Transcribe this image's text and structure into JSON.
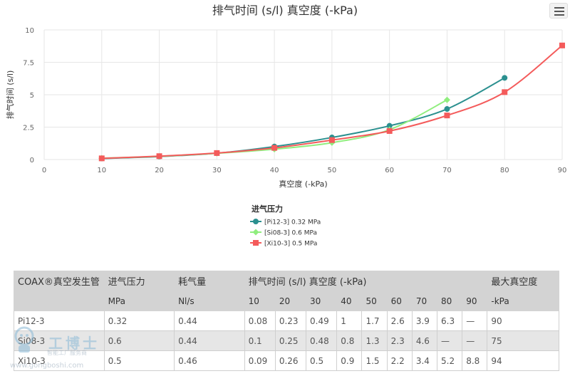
{
  "chart_data": {
    "type": "line",
    "title": "排气时间 (s/l) 真空度 (-kPa)",
    "xlabel": "真空度 (-kPa)",
    "ylabel": "排气时间 (s/l)",
    "xlim": [
      0,
      90
    ],
    "ylim": [
      0,
      10
    ],
    "xticks": [
      0,
      10,
      20,
      30,
      40,
      50,
      60,
      70,
      80,
      90
    ],
    "yticks": [
      0,
      2.5,
      5,
      7.5,
      10
    ],
    "ytick_labels": [
      "0",
      "2.5",
      "5",
      "7.5",
      "10"
    ],
    "grid": true,
    "legend_title": "进气压力",
    "legend_position": "bottom",
    "series": [
      {
        "name": "[Pi12-3] 0.32 MPa",
        "color": "#2b908f",
        "marker": "circle",
        "x": [
          10,
          20,
          30,
          40,
          50,
          60,
          70,
          80
        ],
        "y": [
          0.08,
          0.23,
          0.49,
          1,
          1.7,
          2.6,
          3.9,
          6.3
        ]
      },
      {
        "name": "[Si08-3] 0.6 MPa",
        "color": "#90ee7e",
        "marker": "diamond",
        "x": [
          10,
          20,
          30,
          40,
          50,
          60,
          70
        ],
        "y": [
          0.1,
          0.25,
          0.48,
          0.8,
          1.3,
          2.3,
          4.6
        ]
      },
      {
        "name": "[Xi10-3] 0.5 MPa",
        "color": "#f45b5b",
        "marker": "square",
        "x": [
          10,
          20,
          30,
          40,
          50,
          60,
          70,
          80,
          90
        ],
        "y": [
          0.09,
          0.26,
          0.5,
          0.9,
          1.5,
          2.2,
          3.4,
          5.2,
          8.8
        ]
      }
    ]
  },
  "table": {
    "header1": [
      "COAX®真空发生管",
      "进气压力",
      "耗气量",
      "排气时间 (s/l) 真空度 (-kPa)",
      "最大真空度"
    ],
    "header2": [
      "MPa",
      "Nl/s",
      "10",
      "20",
      "30",
      "40",
      "50",
      "60",
      "70",
      "80",
      "90",
      "-kPa"
    ],
    "rows": [
      [
        "Pi12-3",
        "0.32",
        "0.44",
        "0.08",
        "0.23",
        "0.49",
        "1",
        "1.7",
        "2.6",
        "3.9",
        "6.3",
        "—",
        "90"
      ],
      [
        "Si08-3",
        "0.6",
        "0.44",
        "0.1",
        "0.25",
        "0.48",
        "0.8",
        "1.3",
        "2.3",
        "4.6",
        "—",
        "—",
        "75"
      ],
      [
        "Xi10-3",
        "0.5",
        "0.46",
        "0.09",
        "0.26",
        "0.5",
        "0.9",
        "1.5",
        "2.2",
        "3.4",
        "5.2",
        "8.8",
        "94"
      ]
    ]
  },
  "watermark": {
    "brand": "工博士",
    "tagline": "智能工厂服务商",
    "url": "www.gongboshi.com"
  }
}
